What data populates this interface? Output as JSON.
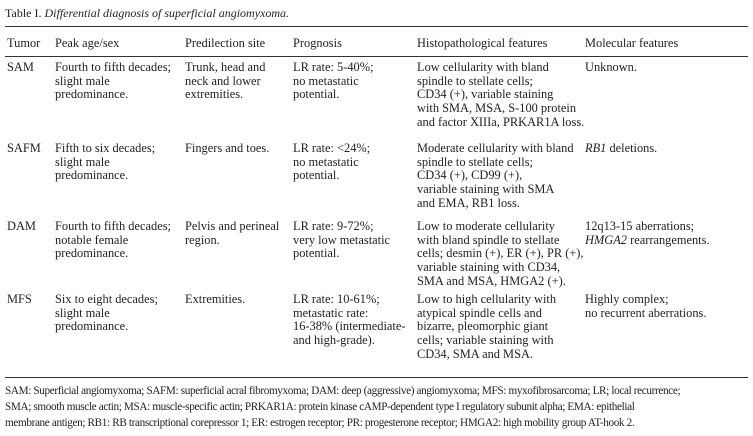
{
  "caption": {
    "label": "Table I.",
    "title": "Differential diagnosis of superficial angiomyxoma."
  },
  "headers": [
    "Tumor",
    "Peak age/sex",
    "Predilection site",
    "Prognosis",
    "Histopathological features",
    "Molecular features"
  ],
  "rows": [
    {
      "cells": [
        [
          [
            "SAM"
          ]
        ],
        [
          [
            "Fourth to fifth decades;"
          ],
          [
            "slight male"
          ],
          [
            "predominance."
          ]
        ],
        [
          [
            "Trunk, head and"
          ],
          [
            "neck and lower"
          ],
          [
            "extremities."
          ]
        ],
        [
          [
            "LR rate: 5-40%;"
          ],
          [
            "no metastatic"
          ],
          [
            "potential."
          ]
        ],
        [
          [
            "Low cellularity with bland"
          ],
          [
            "spindle to stellate cells;"
          ],
          [
            "CD34 (+), variable staining"
          ],
          [
            "with SMA, MSA, S-100 protein"
          ],
          [
            "and factor XIIIa, PRKAR1A loss."
          ]
        ],
        [
          [
            "Unknown."
          ]
        ]
      ]
    },
    {
      "cells": [
        [
          [
            "SAFM"
          ]
        ],
        [
          [
            "Fifth to six decades;"
          ],
          [
            "slight male"
          ],
          [
            "predominance."
          ]
        ],
        [
          [
            "Fingers and toes."
          ]
        ],
        [
          [
            "LR rate: <24%;"
          ],
          [
            "no metastatic"
          ],
          [
            "potential."
          ]
        ],
        [
          [
            "Moderate cellularity with bland"
          ],
          [
            "spindle to stellate cells;"
          ],
          [
            "CD34 (+), CD99 (+),"
          ],
          [
            "variable staining with SMA"
          ],
          [
            "and EMA, RB1 loss."
          ]
        ],
        [
          [
            {
              "t": "RB1",
              "i": true
            },
            " deletions."
          ]
        ]
      ]
    },
    {
      "cells": [
        [
          [
            "DAM"
          ]
        ],
        [
          [
            "Fourth to fifth decades;"
          ],
          [
            "notable female"
          ],
          [
            "predominance."
          ]
        ],
        [
          [
            "Pelvis and perineal"
          ],
          [
            "region."
          ]
        ],
        [
          [
            "LR rate: 9-72%;"
          ],
          [
            "very low metastatic"
          ],
          [
            "potential."
          ]
        ],
        [
          [
            "Low to moderate cellularity"
          ],
          [
            "with bland spindle to stellate"
          ],
          [
            "cells; desmin (+), ER (+), PR (+),"
          ],
          [
            "variable staining with CD34,"
          ],
          [
            "SMA and MSA, HMGA2 (+)."
          ]
        ],
        [
          [
            "12q13-15 aberrations;"
          ],
          [
            {
              "t": "HMGA2",
              "i": true
            },
            " rearrangements."
          ]
        ]
      ]
    },
    {
      "cells": [
        [
          [
            "MFS"
          ]
        ],
        [
          [
            "Six to eight decades;"
          ],
          [
            "slight male"
          ],
          [
            "predominance."
          ]
        ],
        [
          [
            "Extremities."
          ]
        ],
        [
          [
            "LR rate: 10-61%;"
          ],
          [
            "metastatic rate:"
          ],
          [
            "16-38% (intermediate-"
          ],
          [
            "and high-grade)."
          ]
        ],
        [
          [
            "Low to high cellularity with"
          ],
          [
            "atypical spindle cells and"
          ],
          [
            "bizarre, pleomorphic giant"
          ],
          [
            " cells; variable staining with"
          ],
          [
            "CD34, SMA and MSA."
          ]
        ],
        [
          [
            "Highly complex;"
          ],
          [
            "no recurrent aberrations."
          ]
        ]
      ]
    }
  ],
  "footnote": [
    "SAM: Superficial angiomyxoma; SAFM: superficial acral fibromyxoma; DAM: deep (aggressive) angiomyxoma; MFS: myxofibrosarcoma; LR; local recurrence;",
    "SMA; smooth muscle actin; MSA: muscle-specific actin; PRKAR1A: protein kinase cAMP-dependent type I regulatory subunit alpha; EMA: epithelial",
    "membrane antigen; RB1: RB transcriptional corepressor 1; ER: estrogen receptor; PR: progesterone receptor; HMGA2: high mobility group AT-hook 2."
  ]
}
